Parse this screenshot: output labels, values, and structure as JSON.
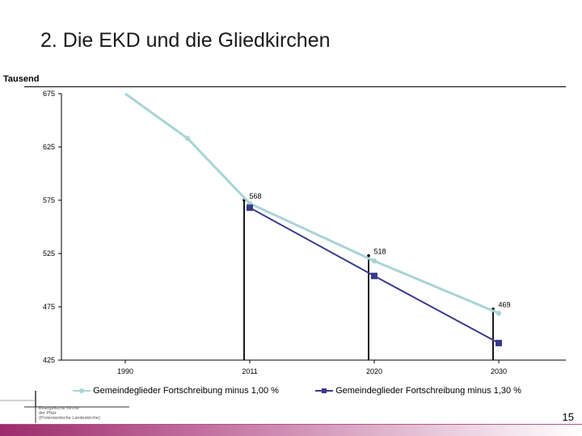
{
  "slide": {
    "title": "2. Die EKD und die Gliedkirchen",
    "unit_label": "Tausend",
    "page_number": "15",
    "logo_lines": [
      "Evangelische Kirche",
      "der Pfalz",
      "(Protestantische Landeskirche)"
    ]
  },
  "chart_data": {
    "type": "line",
    "categories": [
      "1990",
      "2011",
      "2020",
      "2030"
    ],
    "yticks": [
      675,
      625,
      575,
      525,
      475,
      425
    ],
    "ylim": [
      425,
      675
    ],
    "series": [
      {
        "name": "Gemeindeglieder Fortschreibung minus 1,00 %",
        "color": "#a9d4d6",
        "marker": "circle",
        "points": [
          [
            0.0,
            675
          ],
          [
            0.5,
            633
          ],
          [
            1.0,
            572
          ],
          [
            2.0,
            518
          ],
          [
            3.0,
            469
          ]
        ]
      },
      {
        "name": "Gemeindeglieder Fortschreibung minus 1,30 %",
        "color": "#3a3a8c",
        "marker": "square",
        "points": [
          [
            1.0,
            568
          ],
          [
            2.0,
            504
          ],
          [
            3.0,
            441
          ]
        ]
      }
    ],
    "annotations": [
      {
        "x": 1.0,
        "y": 575,
        "label": "568"
      },
      {
        "x": 2.0,
        "y": 523,
        "label": "518"
      },
      {
        "x": 3.0,
        "y": 473,
        "label": "469"
      }
    ],
    "grid": false,
    "legend": "bottom"
  }
}
